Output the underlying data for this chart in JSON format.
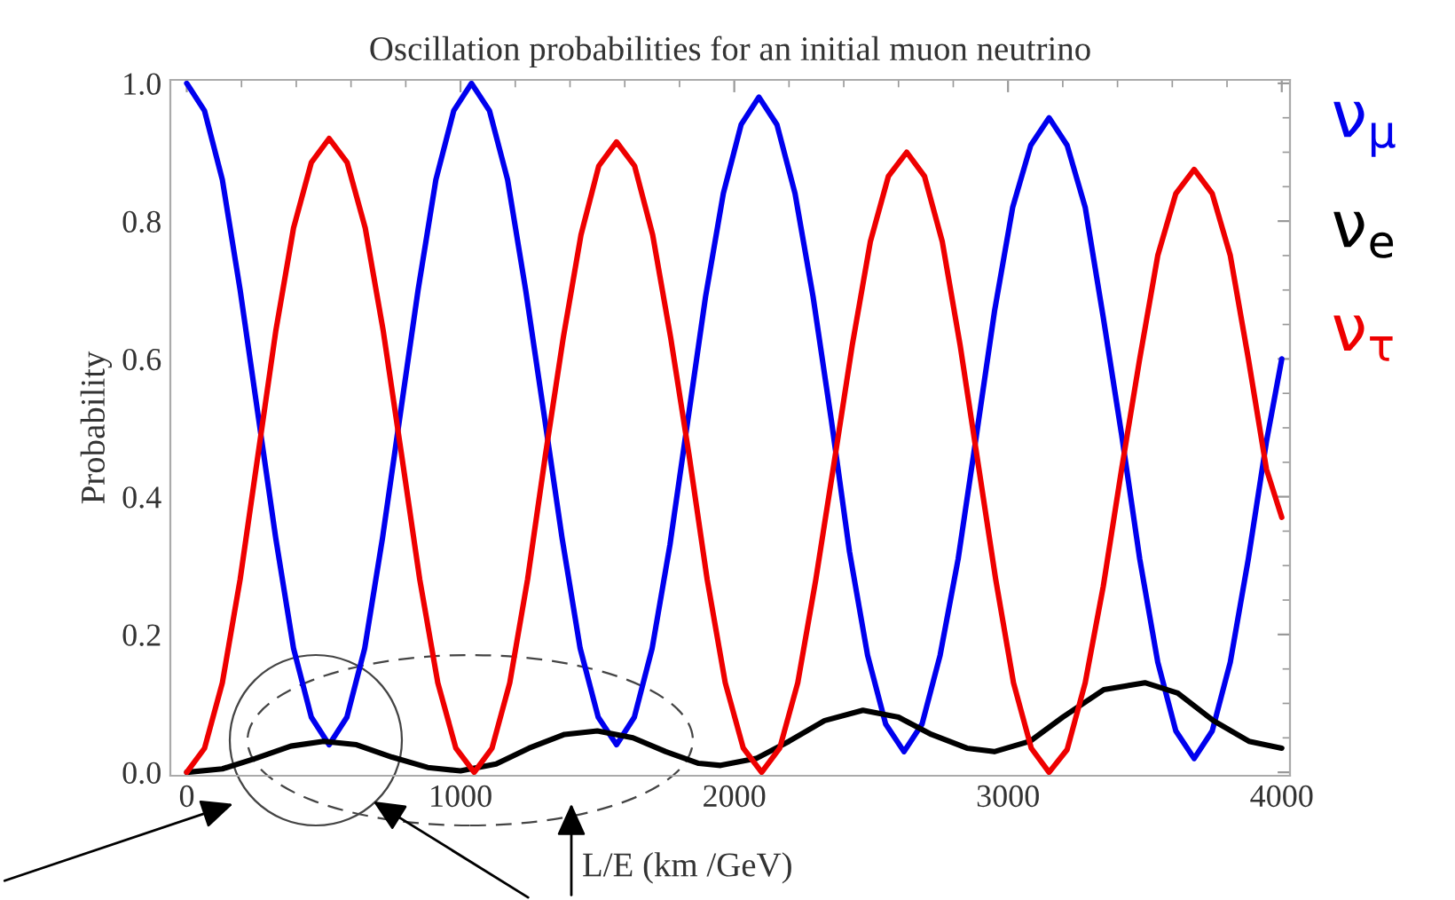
{
  "chart_data": {
    "type": "line",
    "title": "Oscillation probabilities for an initial muon neutrino",
    "xlabel": "L/E (km /GeV)",
    "ylabel": "Probability",
    "xlim": [
      -60,
      4030
    ],
    "ylim": [
      -0.005,
      1.005
    ],
    "xticks": [
      0,
      1000,
      2000,
      3000,
      4000
    ],
    "yticks": [
      {
        "value": 0,
        "label": "0.0"
      },
      {
        "value": 0.2,
        "label": "0.2"
      },
      {
        "value": 0.4,
        "label": "0.4"
      },
      {
        "value": 0.6,
        "label": "0.6"
      },
      {
        "value": 0.8,
        "label": "0.8"
      },
      {
        "value": 1,
        "label": "1.0"
      }
    ],
    "grid": false,
    "legend": "right",
    "marker": "none",
    "line_style": "solid",
    "series": [
      {
        "name": "ν$_{μ}$",
        "color": "#0000ee",
        "x": [
          0,
          65,
          130,
          195,
          260,
          325,
          390,
          455,
          520,
          585,
          650,
          715,
          780,
          845,
          910,
          975,
          1040,
          1106,
          1172,
          1238,
          1305,
          1371,
          1437,
          1503,
          1570,
          1635,
          1700,
          1765,
          1830,
          1895,
          1960,
          2025,
          2090,
          2156,
          2222,
          2288,
          2355,
          2421,
          2487,
          2553,
          2620,
          2686,
          2752,
          2818,
          2885,
          2951,
          3017,
          3083,
          3150,
          3216,
          3282,
          3348,
          3415,
          3481,
          3547,
          3613,
          3680,
          3746,
          3812,
          3878,
          3944,
          4000
        ],
        "values": [
          1.0,
          0.96,
          0.86,
          0.7,
          0.52,
          0.34,
          0.18,
          0.08,
          0.04,
          0.08,
          0.18,
          0.34,
          0.52,
          0.7,
          0.86,
          0.96,
          1.0,
          0.96,
          0.86,
          0.7,
          0.52,
          0.34,
          0.18,
          0.08,
          0.04,
          0.08,
          0.18,
          0.33,
          0.51,
          0.69,
          0.84,
          0.94,
          0.98,
          0.94,
          0.84,
          0.69,
          0.51,
          0.32,
          0.17,
          0.07,
          0.03,
          0.07,
          0.17,
          0.31,
          0.49,
          0.67,
          0.82,
          0.91,
          0.95,
          0.91,
          0.82,
          0.66,
          0.49,
          0.31,
          0.16,
          0.06,
          0.02,
          0.06,
          0.16,
          0.31,
          0.48,
          0.6
        ]
      },
      {
        "name": "ν$_{e}$",
        "color": "#000000",
        "x": [
          0,
          130,
          250,
          380,
          500,
          620,
          750,
          880,
          1000,
          1130,
          1250,
          1380,
          1500,
          1630,
          1750,
          1870,
          1950,
          2080,
          2200,
          2330,
          2470,
          2600,
          2720,
          2850,
          2950,
          3080,
          3200,
          3350,
          3500,
          3620,
          3750,
          3880,
          4000
        ],
        "values": [
          0.0,
          0.005,
          0.02,
          0.038,
          0.045,
          0.04,
          0.022,
          0.007,
          0.002,
          0.012,
          0.035,
          0.055,
          0.06,
          0.05,
          0.03,
          0.013,
          0.01,
          0.02,
          0.045,
          0.075,
          0.09,
          0.08,
          0.055,
          0.035,
          0.03,
          0.045,
          0.08,
          0.12,
          0.13,
          0.115,
          0.075,
          0.045,
          0.035
        ]
      },
      {
        "name": "ν$_{τ}$",
        "color": "#ee0000",
        "x": [
          0,
          65,
          130,
          195,
          260,
          325,
          390,
          455,
          520,
          586,
          652,
          718,
          785,
          851,
          917,
          983,
          1050,
          1115,
          1180,
          1245,
          1310,
          1375,
          1440,
          1505,
          1570,
          1636,
          1702,
          1768,
          1835,
          1901,
          1967,
          2033,
          2100,
          2166,
          2232,
          2298,
          2365,
          2431,
          2497,
          2563,
          2630,
          2695,
          2760,
          2825,
          2890,
          2955,
          3020,
          3085,
          3150,
          3216,
          3282,
          3348,
          3415,
          3481,
          3547,
          3613,
          3680,
          3746,
          3812,
          3878,
          3944,
          4000
        ],
        "values": [
          0.0,
          0.035,
          0.13,
          0.28,
          0.46,
          0.64,
          0.79,
          0.885,
          0.92,
          0.885,
          0.79,
          0.64,
          0.46,
          0.28,
          0.13,
          0.035,
          0.0,
          0.035,
          0.13,
          0.28,
          0.46,
          0.63,
          0.78,
          0.88,
          0.915,
          0.88,
          0.78,
          0.63,
          0.46,
          0.28,
          0.13,
          0.035,
          0.0,
          0.035,
          0.13,
          0.28,
          0.45,
          0.62,
          0.77,
          0.865,
          0.9,
          0.865,
          0.77,
          0.62,
          0.45,
          0.28,
          0.13,
          0.035,
          0.0,
          0.033,
          0.13,
          0.27,
          0.44,
          0.6,
          0.75,
          0.84,
          0.875,
          0.84,
          0.75,
          0.6,
          0.44,
          0.37
        ]
      }
    ]
  }
}
